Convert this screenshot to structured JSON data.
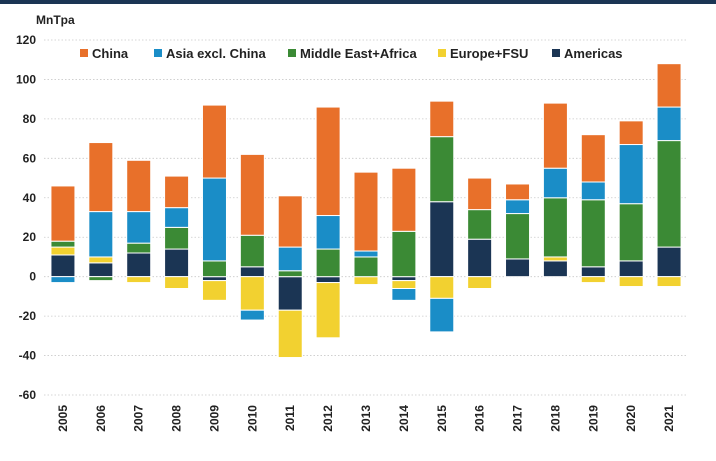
{
  "chart_data": {
    "type": "bar",
    "stacked": true,
    "ylabel": "MnTpa",
    "ylim": [
      -60,
      120
    ],
    "yticks": [
      -60,
      -40,
      -20,
      0,
      20,
      40,
      60,
      80,
      100,
      120
    ],
    "grid": true,
    "legend_position": "top",
    "categories": [
      "2005",
      "2006",
      "2007",
      "2008",
      "2009",
      "2010",
      "2011",
      "2012",
      "2013",
      "2014",
      "2015",
      "2016",
      "2017",
      "2018",
      "2019",
      "2020",
      "2021"
    ],
    "series": [
      {
        "name": "Americas",
        "color": "#1b3554",
        "values": [
          11,
          7,
          12,
          14,
          -2,
          5,
          -17,
          -3,
          0,
          -2,
          38,
          19,
          9,
          8,
          5,
          8,
          15
        ]
      },
      {
        "name": "Europe+FSU",
        "color": "#f2d130",
        "values": [
          4,
          3,
          -3,
          -6,
          -10,
          -17,
          -24,
          -28,
          -4,
          -4,
          -11,
          -6,
          0,
          2,
          -3,
          -5,
          -5
        ]
      },
      {
        "name": "Middle East+Africa",
        "color": "#3b8a35",
        "values": [
          3,
          -2,
          5,
          11,
          8,
          16,
          3,
          14,
          10,
          23,
          33,
          15,
          23,
          30,
          34,
          29,
          54
        ]
      },
      {
        "name": "Asia excl. China",
        "color": "#1a8dc7",
        "values": [
          -3,
          23,
          16,
          10,
          42,
          -5,
          12,
          17,
          3,
          -6,
          -17,
          0,
          7,
          15,
          9,
          30,
          17
        ]
      },
      {
        "name": "China",
        "color": "#e8702a",
        "values": [
          28,
          35,
          26,
          16,
          37,
          41,
          26,
          55,
          40,
          32,
          18,
          16,
          8,
          33,
          24,
          12,
          22
        ]
      }
    ]
  },
  "legend_order": [
    "China",
    "Asia excl. China",
    "Middle East+Africa",
    "Europe+FSU",
    "Americas"
  ]
}
